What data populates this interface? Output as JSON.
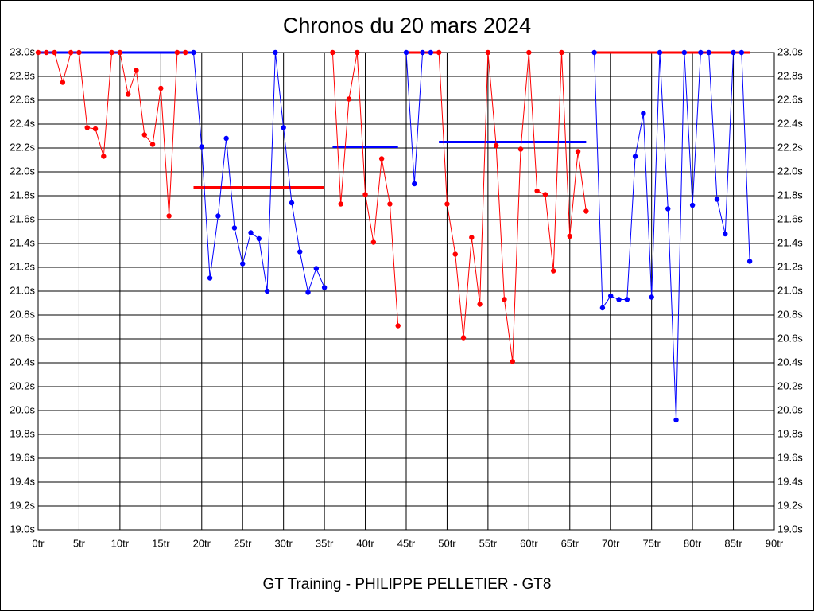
{
  "chart_data": {
    "type": "line",
    "title": "Chronos du 20 mars 2024",
    "subtitle": "GT Training - PHILIPPE PELLETIER - GT8",
    "xlim": [
      0,
      90
    ],
    "ylim": [
      19.0,
      23.0
    ],
    "grid": true,
    "xticks": [
      {
        "value": 0,
        "label": "0tr"
      },
      {
        "value": 5,
        "label": "5tr"
      },
      {
        "value": 10,
        "label": "10tr"
      },
      {
        "value": 15,
        "label": "15tr"
      },
      {
        "value": 20,
        "label": "20tr"
      },
      {
        "value": 25,
        "label": "25tr"
      },
      {
        "value": 30,
        "label": "30tr"
      },
      {
        "value": 35,
        "label": "35tr"
      },
      {
        "value": 40,
        "label": "40tr"
      },
      {
        "value": 45,
        "label": "45tr"
      },
      {
        "value": 50,
        "label": "50tr"
      },
      {
        "value": 55,
        "label": "55tr"
      },
      {
        "value": 60,
        "label": "60tr"
      },
      {
        "value": 65,
        "label": "65tr"
      },
      {
        "value": 70,
        "label": "70tr"
      },
      {
        "value": 75,
        "label": "75tr"
      },
      {
        "value": 80,
        "label": "80tr"
      },
      {
        "value": 85,
        "label": "85tr"
      },
      {
        "value": 90,
        "label": "90tr"
      }
    ],
    "yticks": [
      {
        "value": 19.0,
        "label": "19.0s"
      },
      {
        "value": 19.2,
        "label": "19.2s"
      },
      {
        "value": 19.4,
        "label": "19.4s"
      },
      {
        "value": 19.6,
        "label": "19.6s"
      },
      {
        "value": 19.8,
        "label": "19.8s"
      },
      {
        "value": 20.0,
        "label": "20.0s"
      },
      {
        "value": 20.2,
        "label": "20.2s"
      },
      {
        "value": 20.4,
        "label": "20.4s"
      },
      {
        "value": 20.6,
        "label": "20.6s"
      },
      {
        "value": 20.8,
        "label": "20.8s"
      },
      {
        "value": 21.0,
        "label": "21.0s"
      },
      {
        "value": 21.2,
        "label": "21.2s"
      },
      {
        "value": 21.4,
        "label": "21.4s"
      },
      {
        "value": 21.6,
        "label": "21.6s"
      },
      {
        "value": 21.8,
        "label": "21.8s"
      },
      {
        "value": 22.0,
        "label": "22.0s"
      },
      {
        "value": 22.2,
        "label": "22.2s"
      },
      {
        "value": 22.4,
        "label": "22.4s"
      },
      {
        "value": 22.6,
        "label": "22.6s"
      },
      {
        "value": 22.8,
        "label": "22.8s"
      },
      {
        "value": 23.0,
        "label": "23.0s"
      }
    ],
    "series": [
      {
        "color": "#ff0000",
        "x": [
          0,
          1,
          2,
          3,
          4,
          5,
          6,
          7,
          8,
          9,
          10,
          11,
          12,
          13,
          14,
          15,
          16,
          17,
          18
        ],
        "values": [
          23.0,
          23.0,
          23.0,
          22.75,
          23.0,
          23.0,
          22.37,
          22.36,
          22.13,
          23.0,
          23.0,
          22.65,
          22.85,
          22.31,
          22.23,
          22.7,
          21.63,
          23.0,
          23.0
        ]
      },
      {
        "color": "#0000ff",
        "x": [
          19,
          20,
          21,
          22,
          23,
          24,
          25,
          26,
          27,
          28,
          29,
          30,
          31,
          32,
          33,
          34,
          35
        ],
        "values": [
          23.0,
          22.21,
          21.11,
          21.63,
          22.28,
          21.53,
          21.23,
          21.49,
          21.44,
          21.0,
          23.0,
          22.37,
          21.74,
          21.33,
          20.99,
          21.19,
          21.03
        ]
      },
      {
        "color": "#ff0000",
        "x": [
          36,
          37,
          38,
          39,
          40,
          41,
          42,
          43,
          44
        ],
        "values": [
          23.0,
          21.73,
          22.61,
          23.0,
          21.81,
          21.41,
          22.11,
          21.73,
          20.71
        ]
      },
      {
        "color": "#0000ff",
        "x": [
          45,
          46,
          47,
          48
        ],
        "values": [
          23.0,
          21.9,
          23.0,
          23.0
        ]
      },
      {
        "color": "#ff0000",
        "x": [
          49,
          50,
          51,
          52,
          53,
          54,
          55,
          56,
          57,
          58,
          59,
          60,
          61,
          62,
          63,
          64,
          65,
          66,
          67
        ],
        "values": [
          23.0,
          21.73,
          21.31,
          20.61,
          21.45,
          20.89,
          23.0,
          22.22,
          20.93,
          20.41,
          22.19,
          23.0,
          21.84,
          21.81,
          21.17,
          23.0,
          21.46,
          22.17,
          21.67
        ]
      },
      {
        "color": "#0000ff",
        "x": [
          68,
          69,
          70,
          71,
          72,
          73,
          74,
          75,
          76,
          77,
          78,
          79,
          80,
          81,
          82,
          83,
          84,
          85,
          86,
          87
        ],
        "values": [
          23.0,
          20.86,
          20.96,
          20.93,
          20.93,
          22.13,
          22.49,
          20.95,
          23.0,
          21.69,
          19.92,
          23.0,
          21.72,
          23.0,
          23.0,
          21.77,
          21.48,
          23.0,
          23.0,
          21.25
        ]
      }
    ],
    "reference_lines": [
      {
        "color": "#0000ff",
        "x": [
          0,
          19
        ],
        "value": 23.0
      },
      {
        "color": "#ff0000",
        "x": [
          19,
          35
        ],
        "value": 21.87
      },
      {
        "color": "#0000ff",
        "x": [
          36,
          44
        ],
        "value": 22.21
      },
      {
        "color": "#ff0000",
        "x": [
          45,
          49
        ],
        "value": 23.0
      },
      {
        "color": "#0000ff",
        "x": [
          49,
          67
        ],
        "value": 22.25
      },
      {
        "color": "#ff0000",
        "x": [
          68,
          87
        ],
        "value": 23.0
      }
    ]
  }
}
